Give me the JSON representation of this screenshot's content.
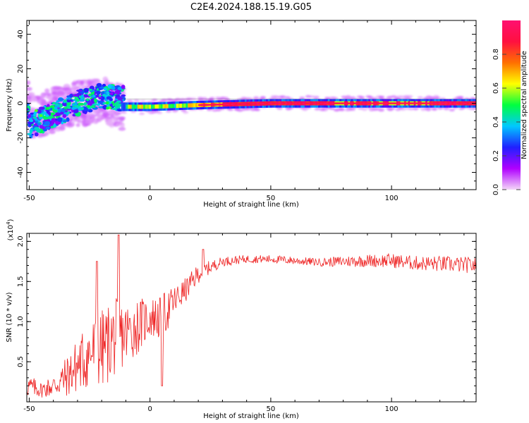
{
  "title": "C2E4.2024.188.15.19.G05",
  "colors": {
    "snr_line": "#ee2222",
    "frame": "#000000",
    "background": "#ffffff",
    "dc_band": "#555555"
  },
  "chart_data": [
    {
      "type": "heatmap",
      "xlabel": "Height of straight line (km)",
      "ylabel": "Frequency (Hz)",
      "xlim": [
        -51,
        135
      ],
      "ylim": [
        -50,
        48
      ],
      "xticks": [
        -50,
        0,
        50,
        100
      ],
      "yticks": [
        -40,
        -20,
        0,
        20,
        40
      ],
      "grid": false,
      "colorbar": {
        "label": "Normalized spectral amplitude",
        "range": [
          0,
          1
        ],
        "ticks": [
          "0.0",
          "0.2",
          "0.4",
          "0.6",
          "0.8"
        ],
        "colormap": [
          "#f4d8f8",
          "#b000ff",
          "#2020ff",
          "#00c8ff",
          "#00ff40",
          "#ffff00",
          "#ff7000",
          "#ff1040",
          "#ff1070"
        ]
      },
      "ridge": {
        "description_values": "spectral line near 0 Hz; scattered energy for heights below -10 km spanning about -15 to +15 Hz",
        "points": [
          {
            "x": -50,
            "f": -8
          },
          {
            "x": -40,
            "f": -4
          },
          {
            "x": -30,
            "f": 0
          },
          {
            "x": -20,
            "f": 2
          },
          {
            "x": -12,
            "f": -2
          },
          {
            "x": 0,
            "f": -2
          },
          {
            "x": 20,
            "f": -1
          },
          {
            "x": 50,
            "f": 0
          },
          {
            "x": 100,
            "f": 0
          },
          {
            "x": 135,
            "f": 0
          }
        ]
      }
    },
    {
      "type": "line",
      "xlabel": "Height of straight line (km)",
      "ylabel": "SNR (10 * v/v)",
      "yscale_label": "(x10",
      "yscale_exp": "4",
      "yscale_close": ")",
      "xlim": [
        -51,
        135
      ],
      "ylim": [
        0,
        2.1
      ],
      "xticks": [
        -50,
        0,
        50,
        100
      ],
      "yticks": [
        "0.5",
        "1.0",
        "1.5",
        "2.0"
      ],
      "ytick_values": [
        0.5,
        1.0,
        1.5,
        2.0
      ],
      "grid": false,
      "series": [
        {
          "envelope_x": [
            -51,
            -45,
            -40,
            -35,
            -30,
            -25,
            -20,
            -15,
            -10,
            -5,
            0,
            5,
            10,
            15,
            20,
            25,
            30,
            40,
            50,
            60,
            70,
            80,
            90,
            100,
            110,
            120,
            135
          ],
          "envelope_mean": [
            0.2,
            0.15,
            0.2,
            0.3,
            0.45,
            0.6,
            0.65,
            0.8,
            0.85,
            0.95,
            1.05,
            1.05,
            1.25,
            1.4,
            1.6,
            1.68,
            1.75,
            1.78,
            1.78,
            1.76,
            1.74,
            1.75,
            1.76,
            1.76,
            1.73,
            1.72,
            1.7
          ],
          "envelope_spread": [
            0.15,
            0.1,
            0.15,
            0.25,
            0.35,
            0.45,
            0.5,
            0.5,
            0.4,
            0.35,
            0.25,
            0.3,
            0.2,
            0.15,
            0.12,
            0.08,
            0.06,
            0.05,
            0.05,
            0.05,
            0.05,
            0.07,
            0.08,
            0.09,
            0.09,
            0.1,
            0.1
          ],
          "peaks": [
            {
              "x": -13,
              "y": 2.08
            },
            {
              "x": -22,
              "y": 1.75
            },
            {
              "x": 5,
              "y": 0.2
            },
            {
              "x": 22,
              "y": 1.9
            }
          ]
        }
      ]
    }
  ]
}
